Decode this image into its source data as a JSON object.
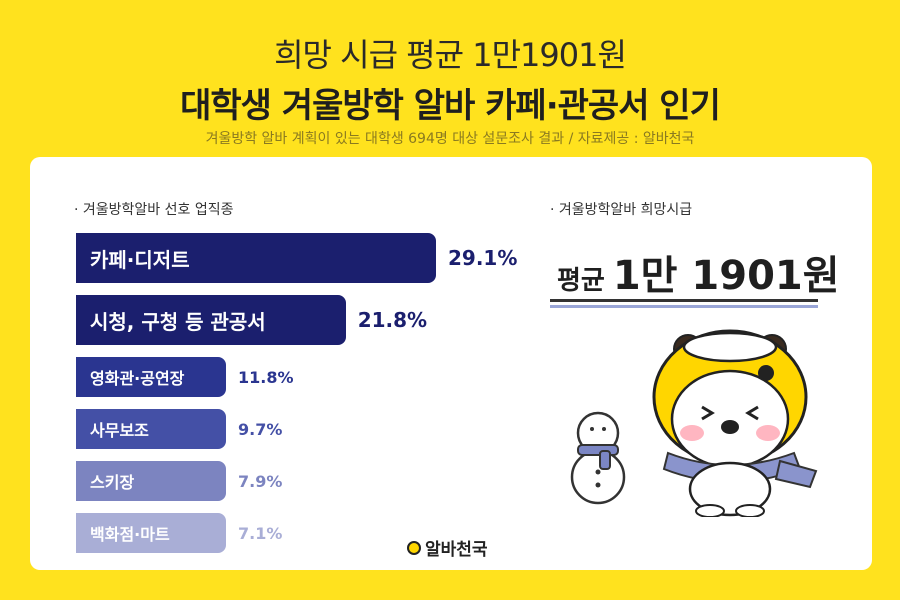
{
  "header": {
    "title_line1": "희망 시급 평균 1만1901원",
    "title_line2": "대학생 겨울방학 알바 카페·관공서 인기",
    "subtitle": "겨울방학 알바 계획이 있는 대학생 694명 대상 설문조사 결과 / 자료제공 : 알바천국"
  },
  "left_section": {
    "label": "· 겨울방학알바 선호 업직종"
  },
  "right_section": {
    "label": "· 겨울방학알바 희망시급",
    "avg_prefix": "평균",
    "avg_value": "1만 1901원"
  },
  "logo": {
    "text": "알바천국",
    "color": "#FFD600"
  },
  "colors": {
    "background": "#FFE21E",
    "card": "#FFFFFF"
  },
  "chart_data": {
    "type": "bar",
    "orientation": "horizontal",
    "categories": [
      "카페·디저트",
      "시청, 구청 등 관공서",
      "영화관·공연장",
      "사무보조",
      "스키장",
      "백화점·마트"
    ],
    "values": [
      29.1,
      21.8,
      11.8,
      9.7,
      7.9,
      7.1
    ],
    "value_labels": [
      "29.1%",
      "21.8%",
      "11.8%",
      "9.7%",
      "7.9%",
      "7.1%"
    ],
    "bar_colors": [
      "#1B1F6E",
      "#1B1F6E",
      "#2A3590",
      "#4450A6",
      "#7C84C0",
      "#A9AED6"
    ],
    "label_colors": [
      "#1B1F6E",
      "#1B1F6E",
      "#2A3590",
      "#4450A6",
      "#7C84C0",
      "#A9AED6"
    ],
    "title": "",
    "xlabel": "",
    "ylabel": "",
    "grid": false
  }
}
